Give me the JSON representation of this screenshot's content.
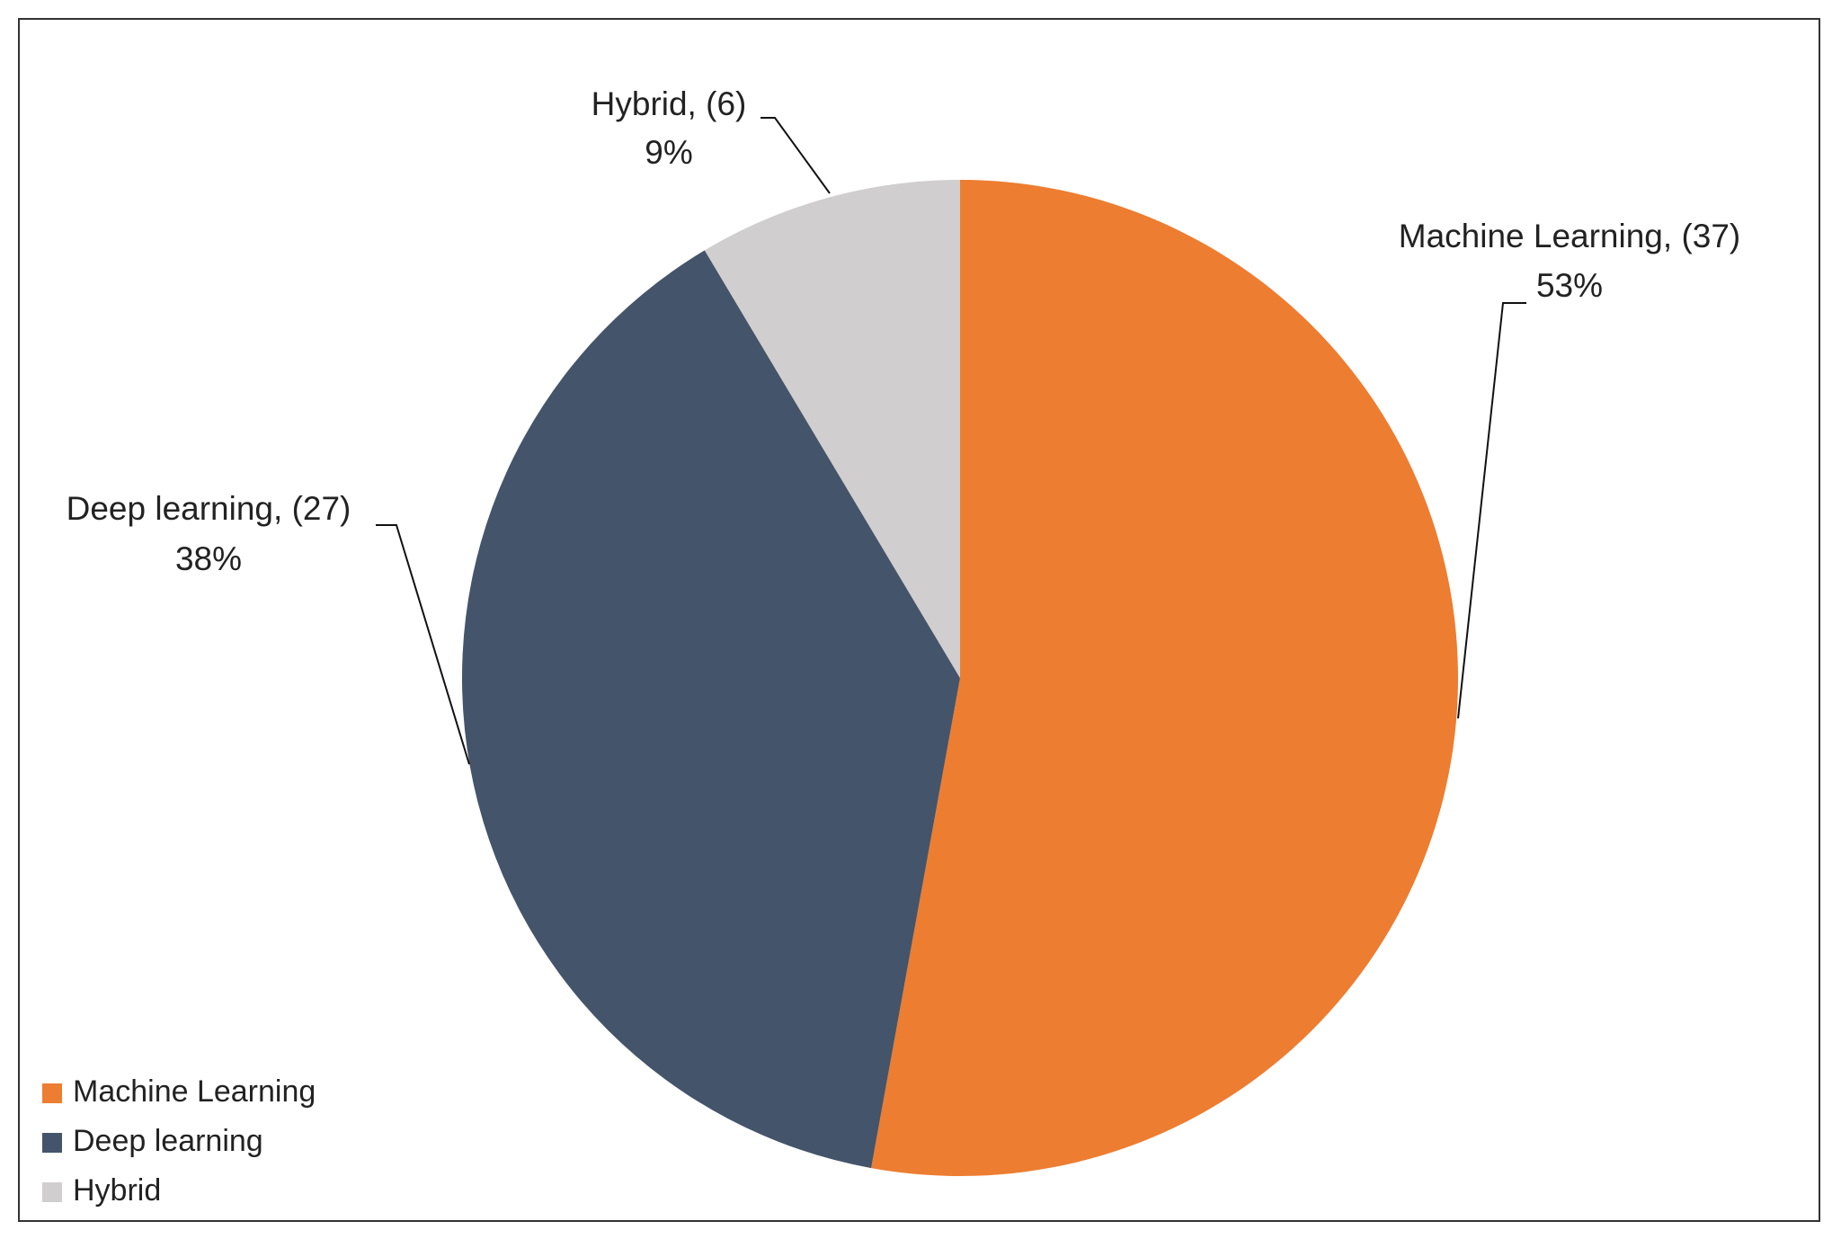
{
  "chart_data": {
    "type": "pie",
    "categories": [
      "Machine Learning",
      "Deep learning",
      "Hybrid"
    ],
    "values": [
      37,
      27,
      6
    ],
    "value_labels": [
      "Machine Learning, (37)",
      "Deep learning, (27)",
      "Hybrid, (6)"
    ],
    "percentages": [
      53,
      38,
      9
    ],
    "percentage_labels": [
      "53%",
      "38%",
      "9%"
    ],
    "colors": [
      "#ED7D31",
      "#44546A",
      "#D0CECE"
    ],
    "legend": "bottom-left"
  }
}
